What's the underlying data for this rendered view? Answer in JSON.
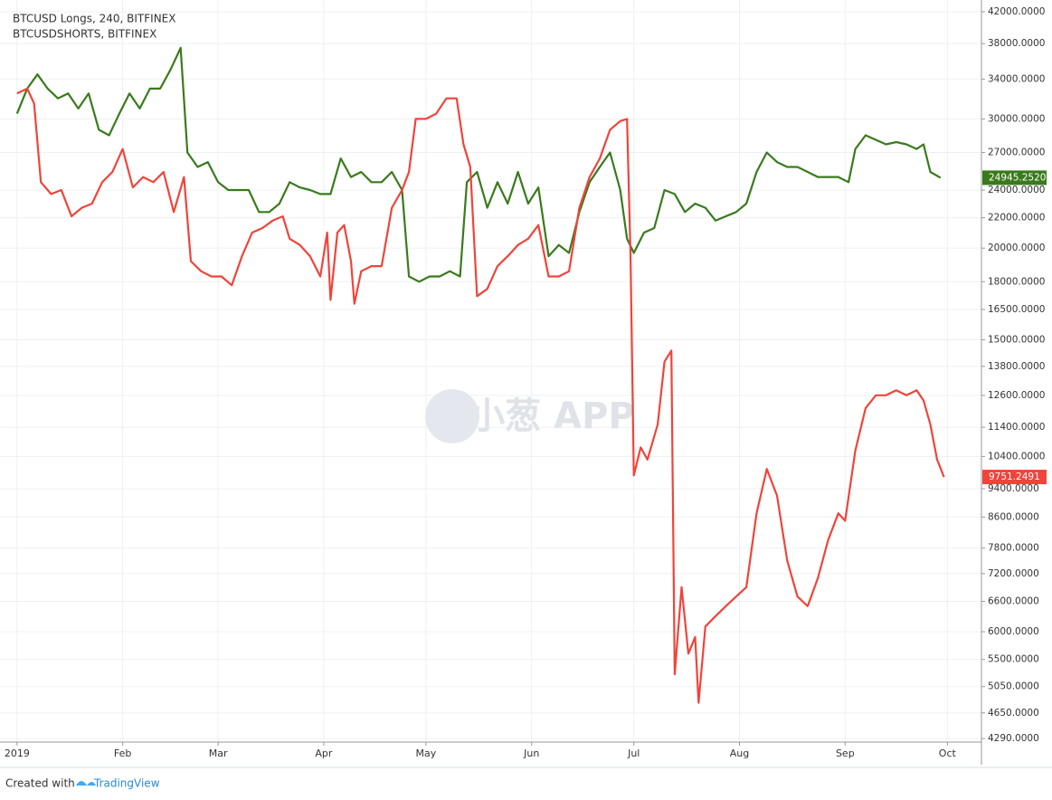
{
  "chart_data": {
    "type": "line",
    "log_scale": true,
    "grid": true,
    "footer": {
      "prefix": "Created with",
      "brand": "TradingView"
    },
    "watermark": "小葱 APP",
    "xlim": [
      -5,
      283
    ],
    "xticks": [
      {
        "value": 0,
        "label": "2019"
      },
      {
        "value": 31,
        "label": "Feb"
      },
      {
        "value": 59,
        "label": "Mar"
      },
      {
        "value": 90,
        "label": "Apr"
      },
      {
        "value": 120,
        "label": "May"
      },
      {
        "value": 151,
        "label": "Jun"
      },
      {
        "value": 181,
        "label": "Jul"
      },
      {
        "value": 212,
        "label": "Aug"
      },
      {
        "value": 243,
        "label": "Sep"
      },
      {
        "value": 273,
        "label": "Oct"
      }
    ],
    "ylim": [
      4243,
      43580
    ],
    "yticks": [
      {
        "value": 42000,
        "label": "42000.0000"
      },
      {
        "value": 38000,
        "label": "38000.0000"
      },
      {
        "value": 34000,
        "label": "34000.0000"
      },
      {
        "value": 30000,
        "label": "30000.0000"
      },
      {
        "value": 27000,
        "label": "27000.0000"
      },
      {
        "value": 24000,
        "label": "24000.0000"
      },
      {
        "value": 22000,
        "label": "22000.0000"
      },
      {
        "value": 20000,
        "label": "20000.0000"
      },
      {
        "value": 18000,
        "label": "18000.0000"
      },
      {
        "value": 16500,
        "label": "16500.0000"
      },
      {
        "value": 15000,
        "label": "15000.0000"
      },
      {
        "value": 13800,
        "label": "13800.0000"
      },
      {
        "value": 12600,
        "label": "12600.0000"
      },
      {
        "value": 11400,
        "label": "11400.0000"
      },
      {
        "value": 10400,
        "label": "10400.0000"
      },
      {
        "value": 9400,
        "label": "9400.0000"
      },
      {
        "value": 8600,
        "label": "8600.0000"
      },
      {
        "value": 7800,
        "label": "7800.0000"
      },
      {
        "value": 7200,
        "label": "7200.0000"
      },
      {
        "value": 6600,
        "label": "6600.0000"
      },
      {
        "value": 6000,
        "label": "6000.0000"
      },
      {
        "value": 5500,
        "label": "5500.0000"
      },
      {
        "value": 5050,
        "label": "5050.0000"
      },
      {
        "value": 4650,
        "label": "4650.0000"
      },
      {
        "value": 4290,
        "label": "4290.0000"
      }
    ],
    "series": [
      {
        "name": "BTCUSD Longs, 240, BITFINEX",
        "color": "#3a7a1c",
        "last_label": "24945.2520",
        "x": [
          0,
          3,
          6,
          9,
          12,
          15,
          18,
          21,
          24,
          27,
          30,
          33,
          36,
          39,
          42,
          45,
          48,
          50,
          53,
          56,
          59,
          62,
          65,
          68,
          71,
          74,
          77,
          80,
          83,
          86,
          89,
          92,
          95,
          98,
          101,
          104,
          107,
          110,
          113,
          115,
          118,
          121,
          124,
          127,
          130,
          132,
          135,
          138,
          141,
          144,
          147,
          150,
          153,
          156,
          159,
          162,
          165,
          168,
          171,
          174,
          177,
          179,
          181,
          184,
          187,
          190,
          193,
          196,
          199,
          202,
          205,
          208,
          211,
          214,
          217,
          220,
          223,
          226,
          229,
          232,
          235,
          238,
          241,
          244,
          246,
          249,
          252,
          255,
          258,
          261,
          264,
          266,
          268,
          271
        ],
        "values": [
          30500,
          33000,
          34500,
          33000,
          32000,
          32500,
          31000,
          32500,
          29000,
          28500,
          30500,
          32500,
          31000,
          33000,
          33000,
          35000,
          37500,
          27000,
          25800,
          26200,
          24600,
          24000,
          24000,
          24000,
          22400,
          22400,
          23000,
          24600,
          24200,
          24000,
          23700,
          23700,
          26500,
          25000,
          25400,
          24600,
          24600,
          25400,
          24000,
          18300,
          18000,
          18300,
          18300,
          18600,
          18300,
          24600,
          25400,
          22700,
          24600,
          23000,
          25400,
          23000,
          24200,
          19500,
          20200,
          19700,
          22400,
          24600,
          25800,
          27000,
          24000,
          20600,
          19700,
          21000,
          21300,
          24000,
          23700,
          22400,
          23000,
          22700,
          21800,
          22100,
          22400,
          23000,
          25400,
          27000,
          26200,
          25800,
          25800,
          25400,
          25000,
          25000,
          25000,
          24600,
          27300,
          28500,
          28100,
          27700,
          27900,
          27700,
          27300,
          27700,
          25400,
          24945.252
        ]
      },
      {
        "name": "BTCUSDSHORTS, BITFINEX",
        "color": "#f0443a",
        "last_label": "9751.2491",
        "x": [
          0,
          3,
          5,
          7,
          10,
          13,
          16,
          19,
          22,
          25,
          28,
          31,
          34,
          37,
          40,
          43,
          46,
          49,
          51,
          54,
          57,
          60,
          63,
          66,
          69,
          72,
          75,
          78,
          80,
          83,
          86,
          89,
          91,
          92,
          94,
          96,
          98,
          99,
          101,
          104,
          107,
          110,
          113,
          115,
          117,
          120,
          123,
          126,
          129,
          131,
          133,
          135,
          138,
          141,
          144,
          147,
          150,
          153,
          156,
          159,
          162,
          165,
          168,
          171,
          174,
          177,
          179,
          180,
          181,
          183,
          185,
          188,
          190,
          192,
          193,
          195,
          197,
          199,
          200,
          202,
          205,
          208,
          211,
          214,
          217,
          220,
          223,
          226,
          229,
          232,
          235,
          238,
          241,
          243,
          246,
          249,
          252,
          255,
          258,
          261,
          264,
          266,
          268,
          270,
          272
        ],
        "values": [
          32500,
          33000,
          31500,
          24600,
          23700,
          24000,
          22100,
          22700,
          23000,
          24600,
          25400,
          27300,
          24200,
          25000,
          24600,
          25400,
          22400,
          25000,
          19200,
          18600,
          18300,
          18300,
          17800,
          19500,
          21000,
          21300,
          21800,
          22100,
          20600,
          20200,
          19500,
          18300,
          21000,
          17000,
          21000,
          21500,
          19200,
          16800,
          18600,
          18900,
          18900,
          22700,
          24000,
          25400,
          30000,
          30000,
          30500,
          32000,
          32000,
          27700,
          25800,
          17200,
          17600,
          18900,
          19500,
          20200,
          20600,
          21500,
          18300,
          18300,
          18600,
          22700,
          25000,
          26500,
          29000,
          29800,
          30000,
          19700,
          9800,
          10700,
          10300,
          11500,
          14000,
          14500,
          5250,
          6900,
          5600,
          5900,
          4800,
          6100,
          6300,
          6500,
          6700,
          6900,
          8700,
          10000,
          9200,
          7500,
          6700,
          6500,
          7100,
          8000,
          8700,
          8500,
          10600,
          12100,
          12600,
          12600,
          12800,
          12600,
          12800,
          12400,
          11500,
          10300,
          9751.2491
        ]
      }
    ]
  }
}
